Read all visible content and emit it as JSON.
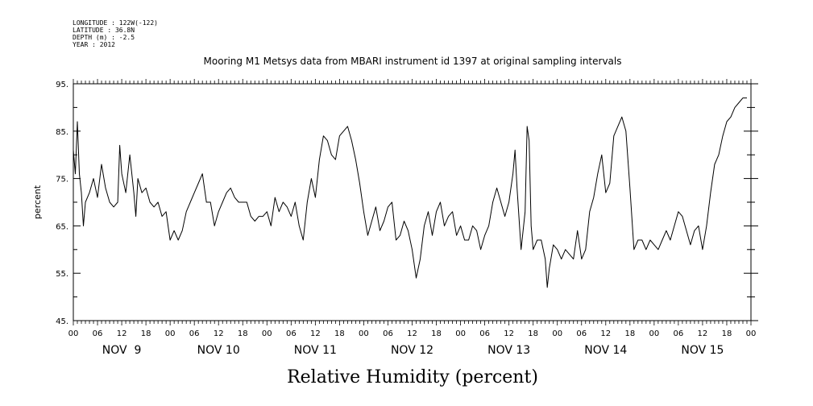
{
  "metadata": {
    "lines": [
      "LONGITUDE : 122W(-122)",
      "LATITUDE : 36.8N",
      "DEPTH (m) : -2.5",
      "YEAR : 2012"
    ]
  },
  "chart_data": {
    "type": "line",
    "title": "Mooring M1 Metsys data from MBARI instrument id 1397 at original sampling intervals",
    "bottom_title": "Relative Humidity (percent)",
    "ylabel": "percent",
    "ylim": [
      45,
      95
    ],
    "yticks": [
      45,
      55,
      65,
      75,
      85,
      95
    ],
    "ytick_labels": [
      "45.",
      "55.",
      "65.",
      "75.",
      "85.",
      "95."
    ],
    "x_unit": "hours since NOV 9 00",
    "xlim": [
      0,
      168
    ],
    "xtick_labels": [
      "00",
      "06",
      "12",
      "18",
      "00",
      "06",
      "12",
      "18",
      "00",
      "06",
      "12",
      "18",
      "00",
      "06",
      "12",
      "18",
      "00",
      "06",
      "12",
      "18",
      "00",
      "06",
      "12",
      "18",
      "00",
      "06",
      "12",
      "18",
      "00"
    ],
    "day_labels": [
      "NOV  9",
      "NOV 10",
      "NOV 11",
      "NOV 12",
      "NOV 13",
      "NOV 14",
      "NOV 15"
    ],
    "grid": false,
    "series": [
      {
        "values": [
          [
            0,
            81
          ],
          [
            0.5,
            76
          ],
          [
            1,
            87
          ],
          [
            1.5,
            76
          ],
          [
            2,
            72
          ],
          [
            2.5,
            65
          ],
          [
            3,
            70
          ],
          [
            4,
            72
          ],
          [
            5,
            75
          ],
          [
            6,
            71
          ],
          [
            7,
            78
          ],
          [
            8,
            73
          ],
          [
            9,
            70
          ],
          [
            10,
            69
          ],
          [
            11,
            70
          ],
          [
            11.5,
            82
          ],
          [
            12,
            76
          ],
          [
            13,
            72
          ],
          [
            14,
            80
          ],
          [
            15,
            72
          ],
          [
            15.5,
            67
          ],
          [
            16,
            75
          ],
          [
            17,
            72
          ],
          [
            18,
            73
          ],
          [
            19,
            70
          ],
          [
            20,
            69
          ],
          [
            21,
            70
          ],
          [
            22,
            67
          ],
          [
            23,
            68
          ],
          [
            24,
            62
          ],
          [
            25,
            64
          ],
          [
            26,
            62
          ],
          [
            27,
            64
          ],
          [
            28,
            68
          ],
          [
            29,
            70
          ],
          [
            30,
            72
          ],
          [
            31,
            74
          ],
          [
            32,
            76
          ],
          [
            33,
            70
          ],
          [
            34,
            70
          ],
          [
            35,
            65
          ],
          [
            36,
            68
          ],
          [
            37,
            70
          ],
          [
            38,
            72
          ],
          [
            39,
            73
          ],
          [
            40,
            71
          ],
          [
            41,
            70
          ],
          [
            42,
            70
          ],
          [
            43,
            70
          ],
          [
            44,
            67
          ],
          [
            45,
            66
          ],
          [
            46,
            67
          ],
          [
            47,
            67
          ],
          [
            48,
            68
          ],
          [
            49,
            65
          ],
          [
            50,
            71
          ],
          [
            51,
            68
          ],
          [
            52,
            70
          ],
          [
            53,
            69
          ],
          [
            54,
            67
          ],
          [
            55,
            70
          ],
          [
            56,
            65
          ],
          [
            57,
            62
          ],
          [
            58,
            70
          ],
          [
            59,
            75
          ],
          [
            60,
            71
          ],
          [
            61,
            79
          ],
          [
            62,
            84
          ],
          [
            63,
            83
          ],
          [
            64,
            80
          ],
          [
            65,
            79
          ],
          [
            66,
            84
          ],
          [
            67,
            85
          ],
          [
            68,
            86
          ],
          [
            69,
            83
          ],
          [
            70,
            79
          ],
          [
            71,
            74
          ],
          [
            72,
            68
          ],
          [
            73,
            63
          ],
          [
            74,
            66
          ],
          [
            75,
            69
          ],
          [
            76,
            64
          ],
          [
            77,
            66
          ],
          [
            78,
            69
          ],
          [
            79,
            70
          ],
          [
            80,
            62
          ],
          [
            81,
            63
          ],
          [
            82,
            66
          ],
          [
            83,
            64
          ],
          [
            84,
            60
          ],
          [
            85,
            54
          ],
          [
            86,
            58
          ],
          [
            87,
            65
          ],
          [
            88,
            68
          ],
          [
            89,
            63
          ],
          [
            90,
            68
          ],
          [
            91,
            70
          ],
          [
            92,
            65
          ],
          [
            93,
            67
          ],
          [
            94,
            68
          ],
          [
            95,
            63
          ],
          [
            96,
            65
          ],
          [
            97,
            62
          ],
          [
            98,
            62
          ],
          [
            99,
            65
          ],
          [
            100,
            64
          ],
          [
            101,
            60
          ],
          [
            102,
            63
          ],
          [
            103,
            65
          ],
          [
            104,
            70
          ],
          [
            105,
            73
          ],
          [
            106,
            70
          ],
          [
            107,
            67
          ],
          [
            108,
            70
          ],
          [
            109,
            76
          ],
          [
            109.5,
            81
          ],
          [
            110,
            73
          ],
          [
            111,
            60
          ],
          [
            112,
            68
          ],
          [
            112.5,
            86
          ],
          [
            113,
            83
          ],
          [
            113.5,
            65
          ],
          [
            114,
            60
          ],
          [
            115,
            62
          ],
          [
            116,
            62
          ],
          [
            117,
            58
          ],
          [
            117.5,
            52
          ],
          [
            118,
            56
          ],
          [
            119,
            61
          ],
          [
            120,
            60
          ],
          [
            121,
            58
          ],
          [
            122,
            60
          ],
          [
            123,
            59
          ],
          [
            124,
            58
          ],
          [
            125,
            64
          ],
          [
            126,
            58
          ],
          [
            127,
            60
          ],
          [
            128,
            68
          ],
          [
            129,
            71
          ],
          [
            130,
            76
          ],
          [
            131,
            80
          ],
          [
            132,
            72
          ],
          [
            133,
            74
          ],
          [
            134,
            84
          ],
          [
            135,
            86
          ],
          [
            136,
            88
          ],
          [
            137,
            85
          ],
          [
            138,
            73
          ],
          [
            139,
            60
          ],
          [
            140,
            62
          ],
          [
            141,
            62
          ],
          [
            142,
            60
          ],
          [
            143,
            62
          ],
          [
            144,
            61
          ],
          [
            145,
            60
          ],
          [
            146,
            62
          ],
          [
            147,
            64
          ],
          [
            148,
            62
          ],
          [
            149,
            65
          ],
          [
            150,
            68
          ],
          [
            151,
            67
          ],
          [
            152,
            64
          ],
          [
            153,
            61
          ],
          [
            154,
            64
          ],
          [
            155,
            65
          ],
          [
            156,
            60
          ],
          [
            157,
            65
          ],
          [
            158,
            72
          ],
          [
            159,
            78
          ],
          [
            160,
            80
          ],
          [
            161,
            84
          ],
          [
            162,
            87
          ],
          [
            163,
            88
          ],
          [
            164,
            90
          ],
          [
            165,
            91
          ],
          [
            166,
            92
          ],
          [
            167,
            92
          ]
        ]
      }
    ]
  }
}
